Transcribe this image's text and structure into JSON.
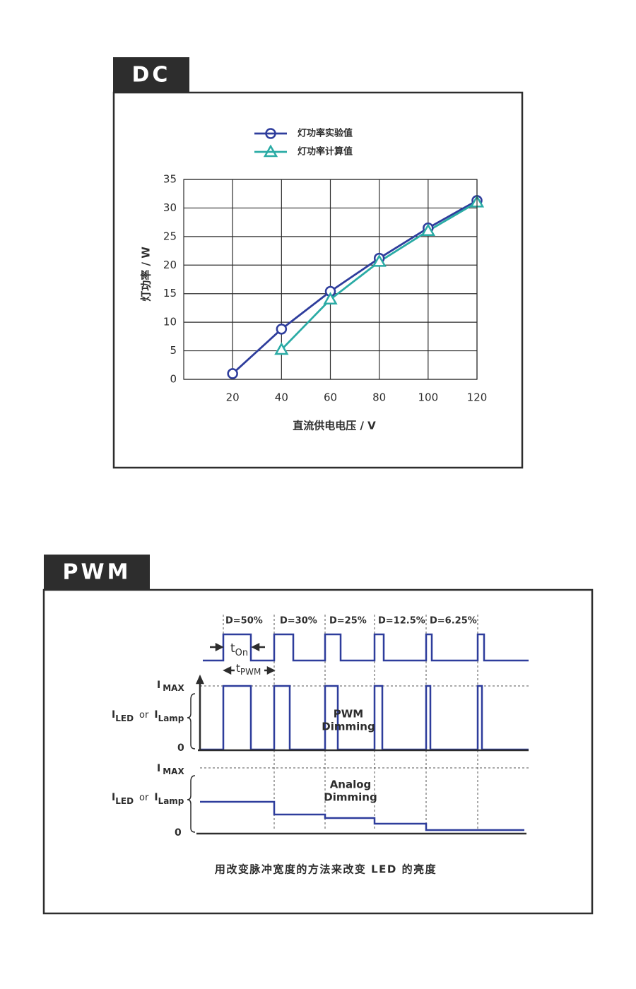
{
  "chart_data": {
    "type": "line",
    "title": "DC",
    "x": [
      20,
      40,
      60,
      80,
      100,
      120
    ],
    "series": [
      {
        "name": "灯功率实验值",
        "color": "#2e3d9c",
        "marker": "circle",
        "values": [
          1,
          8.8,
          15.4,
          21.2,
          26.5,
          31.3
        ]
      },
      {
        "name": "灯功率计算值",
        "color": "#2aaba5",
        "marker": "triangle",
        "values": [
          null,
          5.2,
          14,
          20.6,
          26,
          31
        ]
      }
    ],
    "xlabel": "直流供电电压 / V",
    "ylabel": "灯功率 / W",
    "xlim": [
      0,
      120
    ],
    "xticks": [
      20,
      40,
      60,
      80,
      100,
      120
    ],
    "ylim": [
      0,
      35
    ],
    "yticks": [
      0,
      5,
      10,
      15,
      20,
      25,
      30,
      35
    ],
    "grid": true
  },
  "pwm": {
    "title": "PWM",
    "duty_labels": [
      "D=50%",
      "D=30%",
      "D=25%",
      "D=12.5%",
      "D=6.25%"
    ],
    "t_on": [
      "t",
      "On"
    ],
    "t_pwm": [
      "t",
      "PWM"
    ],
    "i_max": [
      "I",
      "MAX"
    ],
    "i_led": [
      "I",
      "LED",
      "or",
      "I",
      "Lamp"
    ],
    "zero": "0",
    "pwm_dimming": [
      "PWM",
      "Dimming"
    ],
    "analog_dimming": [
      "Analog",
      "Dimming"
    ],
    "caption": "用改变脉冲宽度的方法来改变 LED 的亮度"
  }
}
